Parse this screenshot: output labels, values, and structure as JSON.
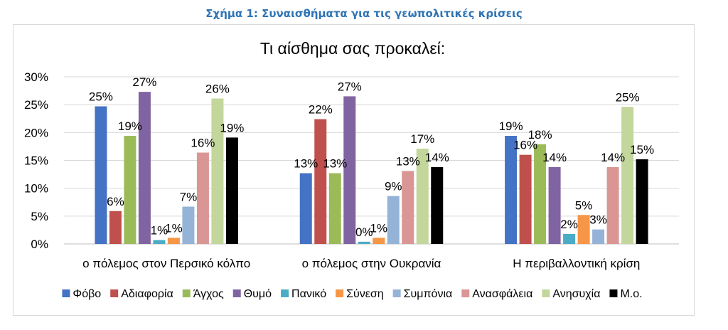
{
  "caption": "Σχήμα 1: Συναισθήματα για τις γεωπολιτικές κρίσεις",
  "chart_data": {
    "type": "bar",
    "title": "Τι αίσθημα σας προκαλεί:",
    "xlabel": "",
    "ylabel": "",
    "ylim": [
      0,
      30
    ],
    "yticks": [
      "0%",
      "5%",
      "10%",
      "15%",
      "20%",
      "25%",
      "30%"
    ],
    "grid": true,
    "legend_position": "bottom",
    "categories": [
      "ο πόλεμος στον Περσικό κόλπο",
      "ο πόλεμος στην Ουκρανία",
      "Η περιβαλλοντική κρίση"
    ],
    "series": [
      {
        "name": "Φόβο",
        "color": "#4472c4",
        "values": [
          24.7,
          12.7,
          19.4
        ],
        "labels": [
          "25%",
          "13%",
          "19%"
        ]
      },
      {
        "name": "Αδιαφορία",
        "color": "#c0504d",
        "values": [
          5.9,
          22.4,
          16.0
        ],
        "labels": [
          "6%",
          "22%",
          "16%"
        ]
      },
      {
        "name": "Άγχος",
        "color": "#9bbb59",
        "values": [
          19.4,
          12.7,
          17.9
        ],
        "labels": [
          "19%",
          "13%",
          "18%"
        ]
      },
      {
        "name": "Θυμό",
        "color": "#8064a2",
        "values": [
          27.3,
          26.5,
          13.8
        ],
        "labels": [
          "27%",
          "27%",
          "14%"
        ]
      },
      {
        "name": "Πανικό",
        "color": "#4bacc6",
        "values": [
          0.7,
          0.4,
          1.8
        ],
        "labels": [
          "1%",
          "0%",
          "2%"
        ]
      },
      {
        "name": "Σύνεση",
        "color": "#f79646",
        "values": [
          1.1,
          1.1,
          5.2
        ],
        "labels": [
          "1%",
          "1%",
          "5%"
        ]
      },
      {
        "name": "Συμπόνια",
        "color": "#95b3d7",
        "values": [
          6.7,
          8.6,
          2.6
        ],
        "labels": [
          "7%",
          "9%",
          "3%"
        ]
      },
      {
        "name": "Ανασφάλεια",
        "color": "#d99694",
        "values": [
          16.4,
          13.1,
          13.8
        ],
        "labels": [
          "16%",
          "13%",
          "14%"
        ]
      },
      {
        "name": "Ανησυχία",
        "color": "#c3d69b",
        "values": [
          26.1,
          17.1,
          24.6
        ],
        "labels": [
          "26%",
          "17%",
          "25%"
        ]
      },
      {
        "name": "Μ.ο.",
        "color": "#000000",
        "values": [
          19.1,
          13.8,
          15.2
        ],
        "labels": [
          "19%",
          "14%",
          "15%"
        ]
      }
    ]
  }
}
